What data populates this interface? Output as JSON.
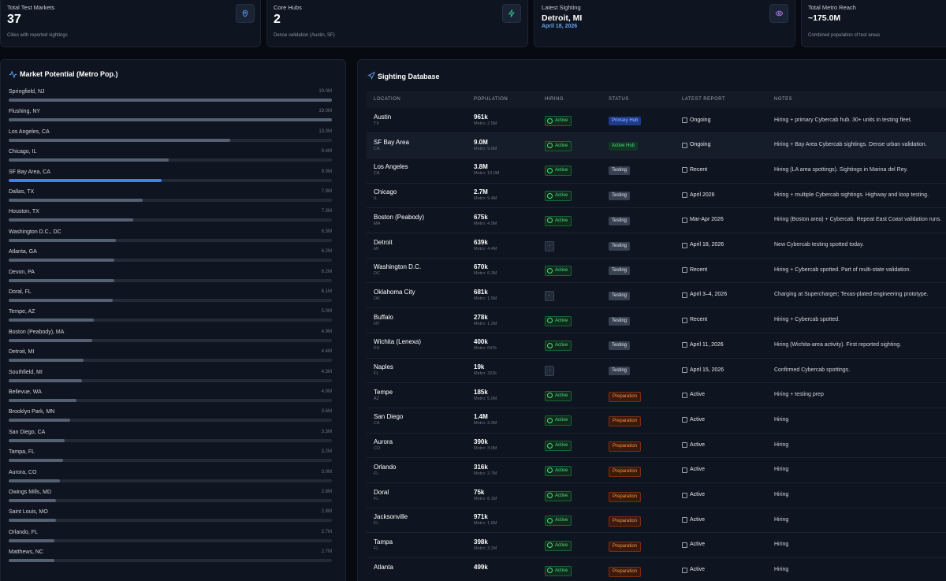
{
  "stats": [
    {
      "title": "Total Test Markets",
      "value": "37",
      "caption": "Cities with reported sightings"
    },
    {
      "title": "Core Hubs",
      "value": "2",
      "caption": "Dense validation (Austin, SF)"
    },
    {
      "title": "Latest Sighting",
      "value": "Detroit, MI",
      "caption": "April 18, 2026"
    },
    {
      "title": "Total Metro Reach",
      "value": "~175.0M",
      "caption": "Combined population of test areas"
    }
  ],
  "market_potential": {
    "title": "Market Potential (Metro Pop.)",
    "items": [
      {
        "name": "Springfield, NJ",
        "value": 19.0,
        "label": "19.0M"
      },
      {
        "name": "Flushing, NY",
        "value": 19.0,
        "label": "19.0M"
      },
      {
        "name": "Los Angeles, CA",
        "value": 13.0,
        "label": "13.0M"
      },
      {
        "name": "Chicago, IL",
        "value": 9.4,
        "label": "9.4M"
      },
      {
        "name": "SF Bay Area, CA",
        "value": 9.0,
        "label": "9.0M",
        "highlight": true
      },
      {
        "name": "Dallas, TX",
        "value": 7.9,
        "label": "7.9M"
      },
      {
        "name": "Houston, TX",
        "value": 7.3,
        "label": "7.3M"
      },
      {
        "name": "Washington D.C., DC",
        "value": 6.3,
        "label": "6.3M"
      },
      {
        "name": "Atlanta, GA",
        "value": 6.2,
        "label": "6.2M"
      },
      {
        "name": "Devon, PA",
        "value": 6.2,
        "label": "6.2M"
      },
      {
        "name": "Doral, FL",
        "value": 6.1,
        "label": "6.1M"
      },
      {
        "name": "Tempe, AZ",
        "value": 5.0,
        "label": "5.0M"
      },
      {
        "name": "Boston (Peabody), MA",
        "value": 4.9,
        "label": "4.9M"
      },
      {
        "name": "Detroit, MI",
        "value": 4.4,
        "label": "4.4M"
      },
      {
        "name": "Southfield, MI",
        "value": 4.3,
        "label": "4.3M"
      },
      {
        "name": "Bellevue, WA",
        "value": 4.0,
        "label": "4.0M"
      },
      {
        "name": "Brooklyn Park, MN",
        "value": 3.6,
        "label": "3.6M"
      },
      {
        "name": "San Diego, CA",
        "value": 3.3,
        "label": "3.3M"
      },
      {
        "name": "Tampa, FL",
        "value": 3.2,
        "label": "3.2M"
      },
      {
        "name": "Aurora, CO",
        "value": 3.0,
        "label": "3.0M"
      },
      {
        "name": "Owings Mills, MD",
        "value": 2.8,
        "label": "2.8M"
      },
      {
        "name": "Saint Louis, MO",
        "value": 2.8,
        "label": "2.8M"
      },
      {
        "name": "Orlando, FL",
        "value": 2.7,
        "label": "2.7M"
      },
      {
        "name": "Matthews, NC",
        "value": 2.7,
        "label": "2.7M"
      }
    ]
  },
  "sighting_database": {
    "title": "Sighting Database",
    "columns": [
      "LOCATION",
      "POPULATION",
      "HIRING",
      "STATUS",
      "LATEST REPORT",
      "NOTES"
    ],
    "rows": [
      {
        "location": "Austin",
        "region": "TX",
        "population": "961k",
        "metro": "Metro: 2.5M",
        "hiring": "Active",
        "status": "Primary Hub",
        "report": "Ongoing",
        "notes": "Hiring + primary Cybercab hub. 30+ units in testing fleet."
      },
      {
        "location": "SF Bay Area",
        "region": "CA",
        "population": "9.0M",
        "metro": "Metro: 9.0M",
        "hiring": "Active",
        "status": "Active Hub",
        "report": "Ongoing",
        "notes": "Hiring + Bay Area Cybercab sightings. Dense urban validation."
      },
      {
        "location": "Los Angeles",
        "region": "CA",
        "population": "3.8M",
        "metro": "Metro: 13.0M",
        "hiring": "Active",
        "status": "Testing",
        "report": "Recent",
        "notes": "Hiring (LA area spottings). Sightings in Marina del Rey."
      },
      {
        "location": "Chicago",
        "region": "IL",
        "population": "2.7M",
        "metro": "Metro: 9.4M",
        "hiring": "Active",
        "status": "Testing",
        "report": "April 2026",
        "notes": "Hiring + multiple Cybercab sightings. Highway and loop testing."
      },
      {
        "location": "Boston (Peabody)",
        "region": "MA",
        "population": "675k",
        "metro": "Metro: 4.9M",
        "hiring": "Active",
        "status": "Testing",
        "report": "Mar-Apr 2026",
        "notes": "Hiring (Boston area) + Cybercab. Repeat East Coast validation runs."
      },
      {
        "location": "Detroit",
        "region": "MI",
        "population": "639k",
        "metro": "Metro: 4.4M",
        "hiring": "-",
        "status": "Testing",
        "report": "April 18, 2026",
        "notes": "New Cybercab testing spotted today."
      },
      {
        "location": "Washington D.C.",
        "region": "DC",
        "population": "670k",
        "metro": "Metro: 6.3M",
        "hiring": "Active",
        "status": "Testing",
        "report": "Recent",
        "notes": "Hiring + Cybercab spotted. Part of multi-state validation."
      },
      {
        "location": "Oklahoma City",
        "region": "OK",
        "population": "681k",
        "metro": "Metro: 1.5M",
        "hiring": "-",
        "status": "Testing",
        "report": "April 3–4, 2026",
        "notes": "Charging at Supercharger; Texas-plated engineering prototype."
      },
      {
        "location": "Buffalo",
        "region": "NY",
        "population": "278k",
        "metro": "Metro: 1.2M",
        "hiring": "Active",
        "status": "Testing",
        "report": "Recent",
        "notes": "Hiring + Cybercab spotted."
      },
      {
        "location": "Wichita (Lenexa)",
        "region": "KS",
        "population": "400k",
        "metro": "Metro: 647k",
        "hiring": "Active",
        "status": "Testing",
        "report": "April 11, 2026",
        "notes": "Hiring (Wichita-area activity). First reported sighting."
      },
      {
        "location": "Naples",
        "region": "FL",
        "population": "19k",
        "metro": "Metro: 322k",
        "hiring": "-",
        "status": "Testing",
        "report": "April 15, 2026",
        "notes": "Confirmed Cybercab spottings."
      },
      {
        "location": "Tempe",
        "region": "AZ",
        "population": "185k",
        "metro": "Metro: 5.0M",
        "hiring": "Active",
        "status": "Preparation",
        "report": "Active",
        "notes": "Hiring + testing prep"
      },
      {
        "location": "San Diego",
        "region": "CA",
        "population": "1.4M",
        "metro": "Metro: 3.3M",
        "hiring": "Active",
        "status": "Preparation",
        "report": "Active",
        "notes": "Hiring"
      },
      {
        "location": "Aurora",
        "region": "CO",
        "population": "390k",
        "metro": "Metro: 3.0M",
        "hiring": "Active",
        "status": "Preparation",
        "report": "Active",
        "notes": "Hiring"
      },
      {
        "location": "Orlando",
        "region": "FL",
        "population": "316k",
        "metro": "Metro: 2.7M",
        "hiring": "Active",
        "status": "Preparation",
        "report": "Active",
        "notes": "Hiring"
      },
      {
        "location": "Doral",
        "region": "FL",
        "population": "75k",
        "metro": "Metro: 6.1M",
        "hiring": "Active",
        "status": "Preparation",
        "report": "Active",
        "notes": "Hiring"
      },
      {
        "location": "Jacksonville",
        "region": "FL",
        "population": "971k",
        "metro": "Metro: 1.6M",
        "hiring": "Active",
        "status": "Preparation",
        "report": "Active",
        "notes": "Hiring"
      },
      {
        "location": "Tampa",
        "region": "FL",
        "population": "398k",
        "metro": "Metro: 3.2M",
        "hiring": "Active",
        "status": "Preparation",
        "report": "Active",
        "notes": "Hiring"
      },
      {
        "location": "Atlanta",
        "population": "499k",
        "hiring": "Active",
        "status": "Preparation",
        "report": "Active",
        "notes": "Hiring"
      }
    ]
  }
}
